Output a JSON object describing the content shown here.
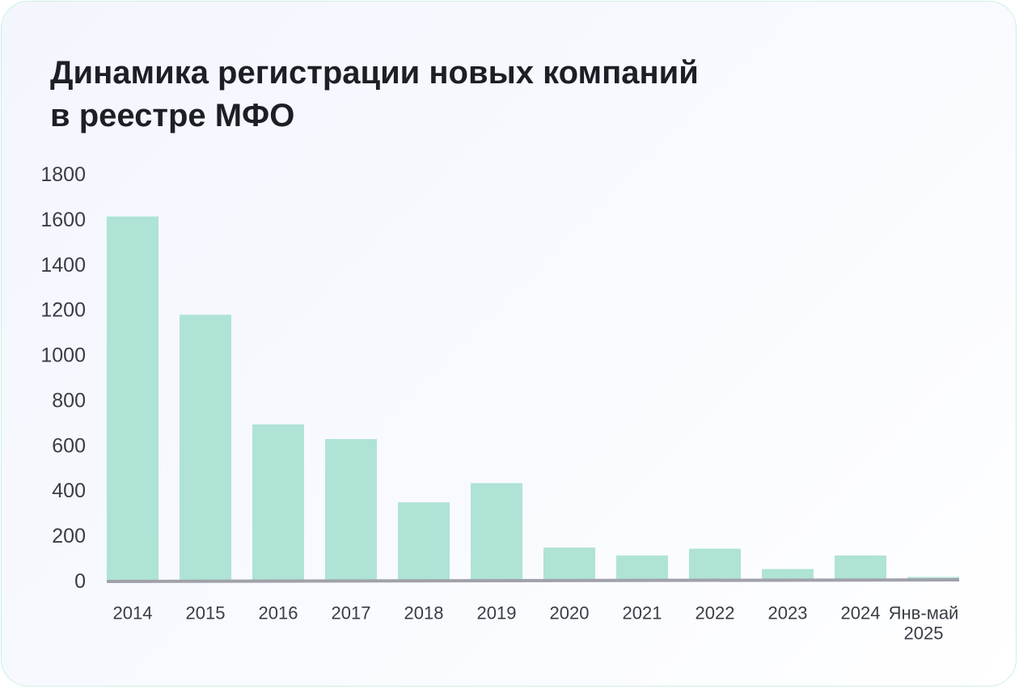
{
  "chart_data": {
    "type": "bar",
    "title_lines": [
      "Динамика регистрации новых компаний",
      "в реестре МФО"
    ],
    "categories": [
      [
        "2014"
      ],
      [
        "2015"
      ],
      [
        "2016"
      ],
      [
        "2017"
      ],
      [
        "2018"
      ],
      [
        "2019"
      ],
      [
        "2020"
      ],
      [
        "2021"
      ],
      [
        "2022"
      ],
      [
        "2023"
      ],
      [
        "2024"
      ],
      [
        "Янв-май",
        "2025"
      ]
    ],
    "values": [
      1615,
      1180,
      695,
      630,
      350,
      435,
      150,
      115,
      145,
      55,
      115,
      20
    ],
    "ylim": [
      0,
      1800
    ],
    "yticks": [
      "0",
      "200",
      "400",
      "600",
      "800",
      "1000",
      "1200",
      "1400",
      "1600",
      "1800"
    ],
    "grid": false,
    "legend": "none",
    "colors": {
      "bar": "#afe3d6",
      "axis": "#a1a1aa",
      "text": "#3a3d45",
      "title": "#1d1f26"
    }
  }
}
